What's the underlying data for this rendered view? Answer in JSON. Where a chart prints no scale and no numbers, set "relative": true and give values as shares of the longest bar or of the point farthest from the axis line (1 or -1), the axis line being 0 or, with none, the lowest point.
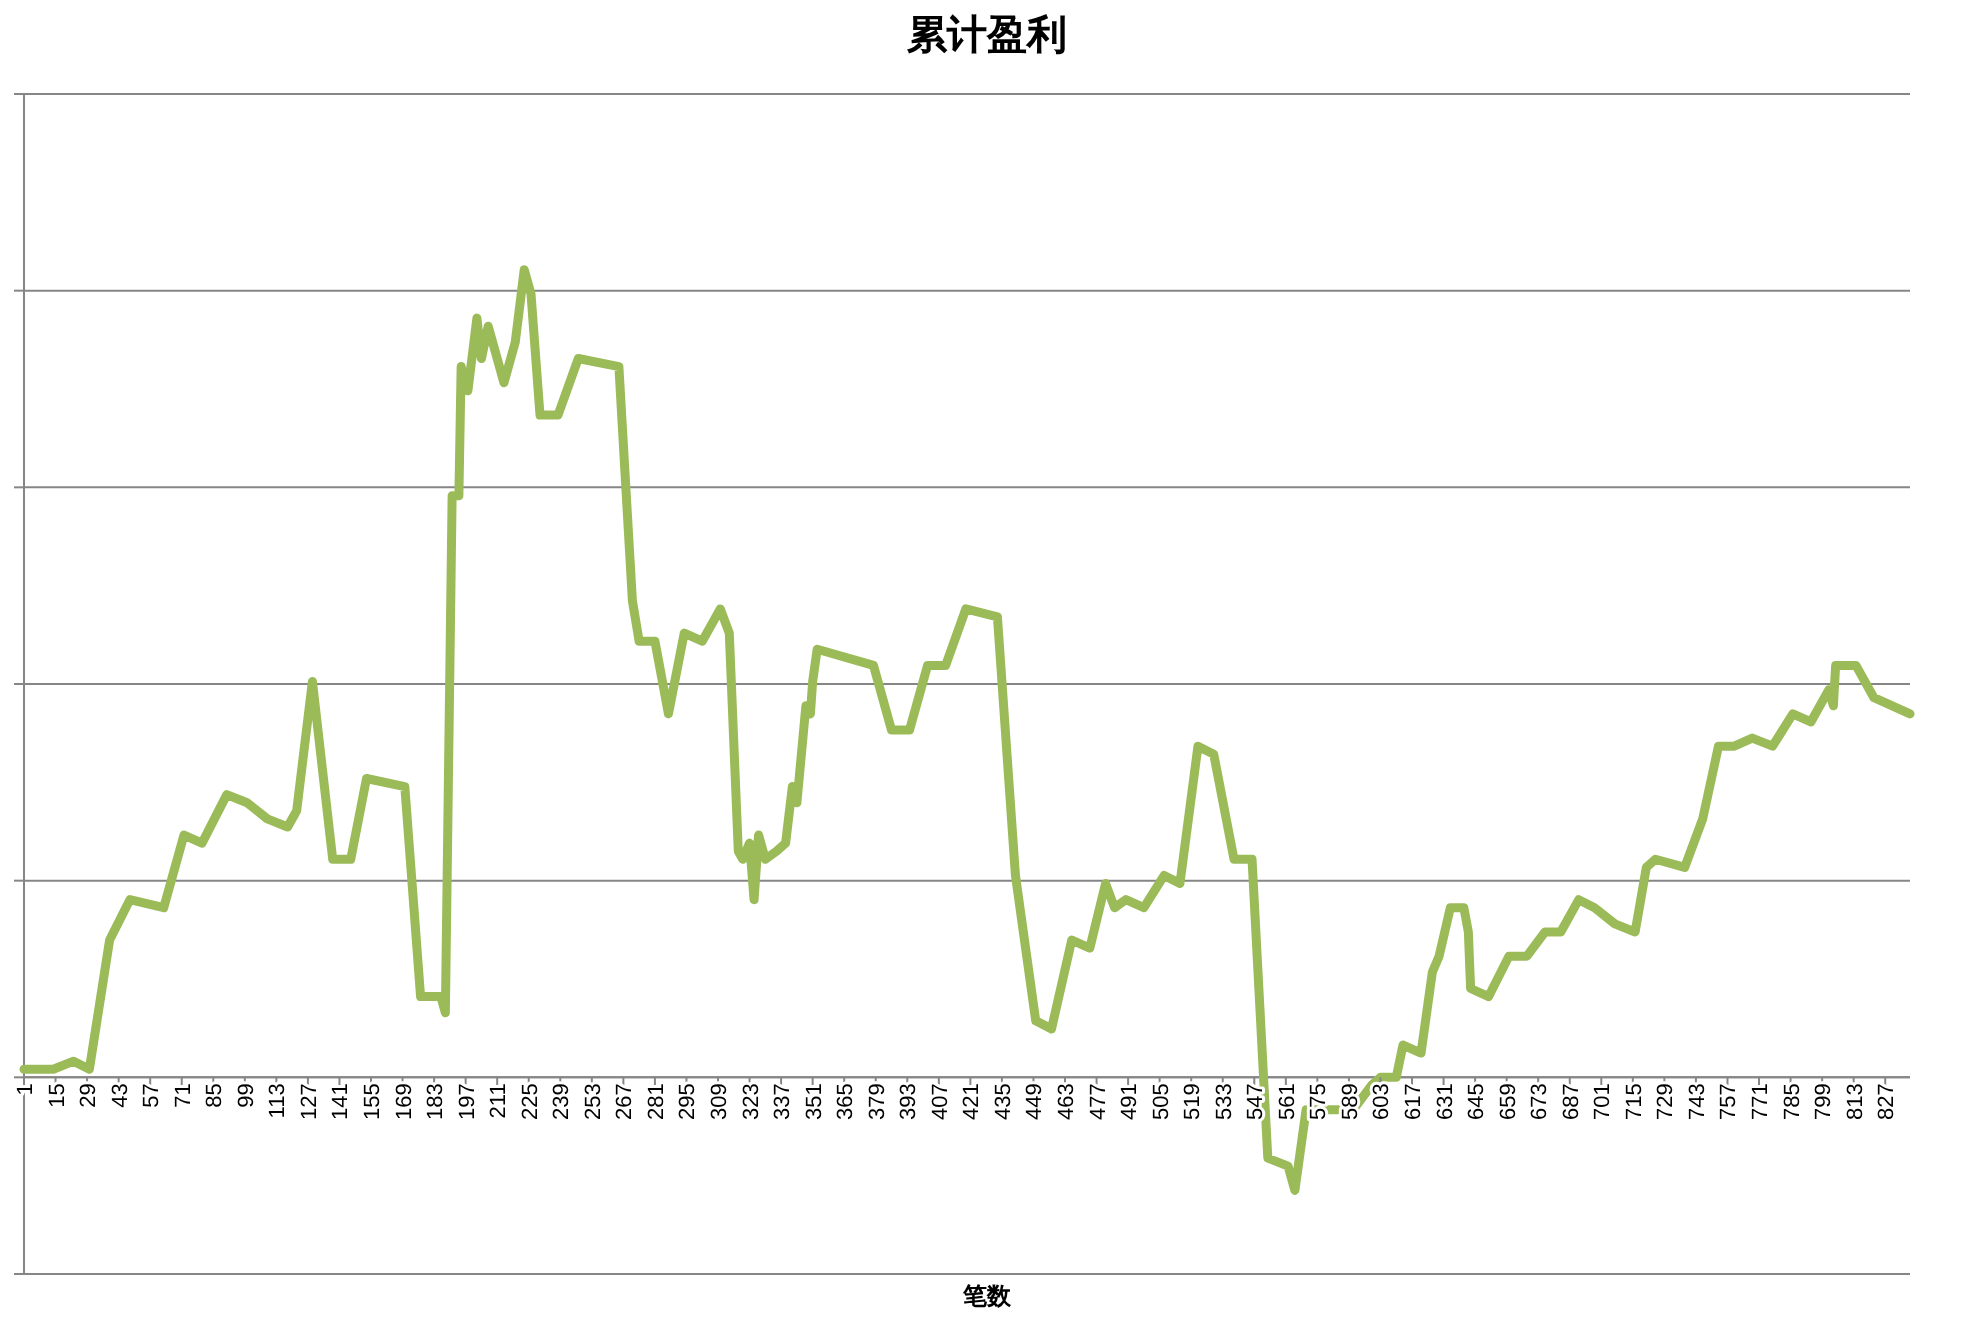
{
  "chart_data": {
    "type": "line",
    "title": "累计盈利",
    "xlabel": "笔数",
    "relative": true,
    "grid": "y",
    "marker": "none",
    "line_style": "solid",
    "xlim": [
      1,
      838
    ],
    "xticks": [
      1,
      15,
      29,
      43,
      57,
      71,
      85,
      99,
      113,
      127,
      141,
      155,
      169,
      183,
      197,
      211,
      225,
      239,
      253,
      267,
      281,
      295,
      309,
      323,
      337,
      351,
      365,
      379,
      393,
      407,
      421,
      435,
      449,
      463,
      477,
      491,
      505,
      519,
      533,
      547,
      561,
      575,
      589,
      603,
      617,
      631,
      645,
      659,
      673,
      687,
      701,
      715,
      729,
      743,
      757,
      771,
      785,
      799,
      813,
      827
    ],
    "series": [
      {
        "color": "#9bbb59",
        "x": [
          1,
          6,
          14,
          23,
          30,
          39,
          48,
          63,
          72,
          80,
          91,
          100,
          109,
          118,
          122,
          129,
          138,
          146,
          153,
          170,
          177,
          186,
          188,
          191,
          194,
          195,
          198,
          202,
          204,
          207,
          214,
          219,
          223,
          226,
          230,
          238,
          247,
          265,
          271,
          274,
          281,
          287,
          294,
          302,
          310,
          314,
          318,
          320,
          323,
          325,
          327,
          330,
          335,
          339,
          342,
          344,
          348,
          350,
          351,
          353,
          378,
          386,
          394,
          402,
          410,
          419,
          433,
          441,
          450,
          457,
          466,
          474,
          481,
          485,
          490,
          498,
          507,
          514,
          522,
          529,
          538,
          546,
          553,
          562,
          565,
          570,
          576,
          585,
          591,
          599,
          603,
          610,
          613,
          621,
          626,
          629,
          634,
          640,
          642,
          643,
          651,
          660,
          668,
          676,
          683,
          691,
          698,
          707,
          716,
          721,
          725,
          738,
          746,
          753,
          760,
          768,
          777,
          786,
          794,
          802,
          804,
          805,
          814,
          822,
          838
        ],
        "values": [
          0.01,
          0.01,
          0.01,
          0.02,
          0.01,
          0.17,
          0.22,
          0.21,
          0.3,
          0.29,
          0.35,
          0.34,
          0.32,
          0.31,
          0.33,
          0.49,
          0.27,
          0.27,
          0.37,
          0.36,
          0.1,
          0.1,
          0.08,
          0.72,
          0.72,
          0.88,
          0.85,
          0.94,
          0.89,
          0.93,
          0.86,
          0.91,
          1,
          0.97,
          0.82,
          0.82,
          0.89,
          0.88,
          0.59,
          0.54,
          0.54,
          0.45,
          0.55,
          0.54,
          0.58,
          0.55,
          0.28,
          0.27,
          0.29,
          0.22,
          0.3,
          0.27,
          0.28,
          0.29,
          0.36,
          0.34,
          0.46,
          0.45,
          0.49,
          0.53,
          0.51,
          0.43,
          0.43,
          0.51,
          0.51,
          0.58,
          0.57,
          0.25,
          0.07,
          0.06,
          0.17,
          0.16,
          0.24,
          0.21,
          0.22,
          0.21,
          0.25,
          0.24,
          0.41,
          0.4,
          0.27,
          0.27,
          -0.1,
          -0.11,
          -0.14,
          -0.04,
          -0.04,
          -0.04,
          -0.04,
          -0.01,
          0,
          0,
          0.04,
          0.03,
          0.13,
          0.15,
          0.21,
          0.21,
          0.18,
          0.11,
          0.1,
          0.15,
          0.15,
          0.18,
          0.18,
          0.22,
          0.21,
          0.19,
          0.18,
          0.26,
          0.27,
          0.26,
          0.32,
          0.41,
          0.41,
          0.42,
          0.41,
          0.45,
          0.44,
          0.48,
          0.46,
          0.51,
          0.51,
          0.47,
          0.45
        ]
      }
    ]
  }
}
